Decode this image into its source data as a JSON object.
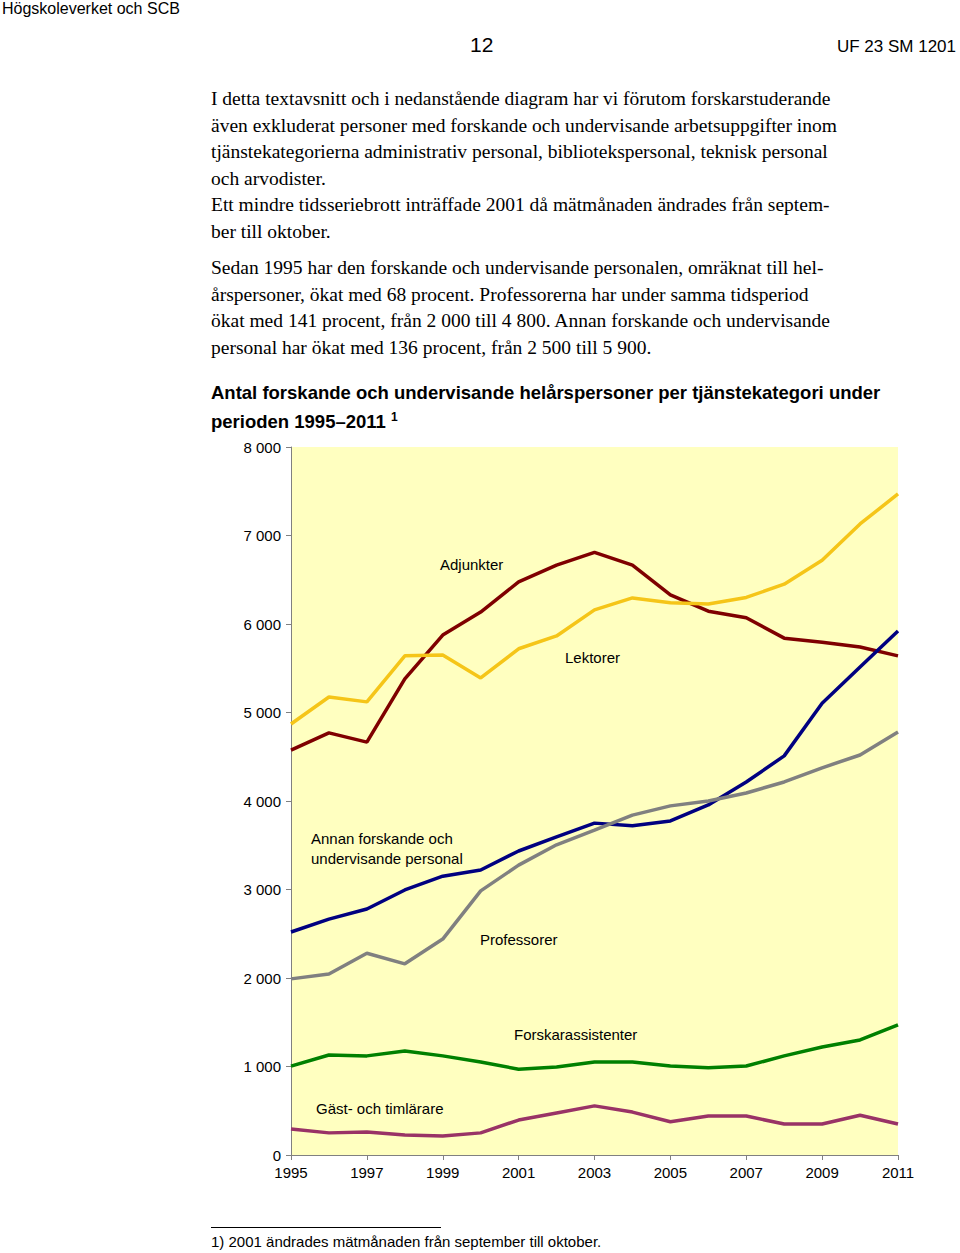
{
  "header": {
    "left": "Högskoleverket och SCB",
    "page": "12",
    "right": "UF 23 SM 1201"
  },
  "paragraphs": [
    [
      "I detta textavsnitt och i nedanstående diagram har vi förutom forskarstuderande",
      "även exkluderat personer med forskande och undervisande arbetsuppgifter inom",
      "tjänstekategorierna administrativ personal, bibliotekspersonal, teknisk personal",
      "och arvodister.",
      "Ett mindre tidsseriebrott inträffade 2001 då mätmånaden ändrades från septem-",
      "ber till oktober."
    ],
    [
      "Sedan 1995 har den forskande och undervisande personalen, omräknat till hel-",
      "årspersoner, ökat med 68 procent. Professorerna har under samma tidsperiod",
      "ökat med 141 procent, från 2 000 till 4 800. Annan forskande och undervisande",
      "personal har ökat med 136 procent, från 2 500 till 5 900."
    ]
  ],
  "title_marker": "1",
  "footnote": "1) 2001 ändrades mätmånaden från september till oktober.",
  "chart_data": {
    "type": "line",
    "title": "Antal forskande och undervisande helårspersoner per tjänstekategori under perioden 1995–2011",
    "x": [
      1995,
      1996,
      1997,
      1998,
      1999,
      2000,
      2001,
      2002,
      2003,
      2004,
      2005,
      2006,
      2007,
      2008,
      2009,
      2010,
      2011
    ],
    "xlim": [
      1995,
      2011
    ],
    "xticks": [
      1995,
      1997,
      1999,
      2001,
      2003,
      2005,
      2007,
      2009,
      2011
    ],
    "ylim": [
      0,
      8000
    ],
    "yticks": [
      0,
      {
        "value": 1000,
        "label": "1 000"
      },
      {
        "value": 2000,
        "label": "2 000"
      },
      {
        "value": 3000,
        "label": "3 000"
      },
      {
        "value": 4000,
        "label": "4 000"
      },
      {
        "value": 5000,
        "label": "5 000"
      },
      {
        "value": 6000,
        "label": "6 000"
      },
      {
        "value": 7000,
        "label": "7 000"
      },
      {
        "value": 8000,
        "label": "8 000"
      }
    ],
    "grid": false,
    "series": [
      {
        "name": "Adjunkter",
        "color": "#7f0000",
        "values": [
          4575,
          4770,
          4665,
          5380,
          5875,
          6135,
          6475,
          6665,
          6810,
          6665,
          6330,
          6145,
          6070,
          5840,
          5795,
          5740,
          5640
        ]
      },
      {
        "name": "Lektorer",
        "color": "#f5c518",
        "values": [
          4870,
          5175,
          5120,
          5640,
          5650,
          5390,
          5720,
          5865,
          6160,
          6295,
          6240,
          6225,
          6300,
          6450,
          6720,
          7130,
          7470
        ]
      },
      {
        "name": "Annan forskande och undervisande personal",
        "color": "#000080",
        "values": [
          2520,
          2665,
          2780,
          2995,
          3150,
          3220,
          3435,
          3595,
          3750,
          3720,
          3775,
          3955,
          4215,
          4510,
          5105,
          5515,
          5920
        ]
      },
      {
        "name": "Professorer",
        "color": "#808080",
        "values": [
          1990,
          2045,
          2280,
          2160,
          2440,
          2985,
          3275,
          3505,
          3670,
          3840,
          3945,
          4000,
          4090,
          4215,
          4375,
          4520,
          4780
        ]
      },
      {
        "name": "Forskarassistenter",
        "color": "#008000",
        "values": [
          1005,
          1130,
          1120,
          1175,
          1120,
          1050,
          970,
          995,
          1050,
          1050,
          1005,
          985,
          1005,
          1120,
          1220,
          1300,
          1470
        ]
      },
      {
        "name": "Gäst- och timlärare",
        "color": "#993366",
        "values": [
          295,
          250,
          260,
          225,
          215,
          250,
          395,
          475,
          555,
          485,
          375,
          440,
          440,
          350,
          350,
          450,
          350
        ]
      }
    ]
  }
}
